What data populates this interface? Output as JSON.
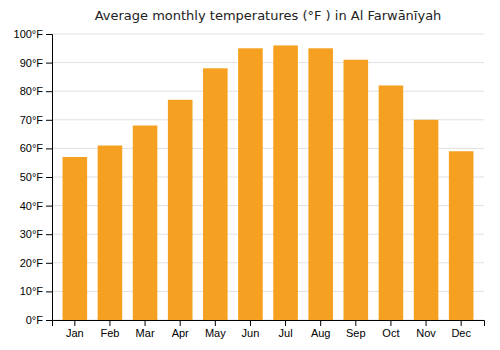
{
  "chart_data": {
    "type": "bar",
    "title": "Average monthly temperatures (°F ) in Al Farwānīyah",
    "categories": [
      "Jan",
      "Feb",
      "Mar",
      "Apr",
      "May",
      "Jun",
      "Jul",
      "Aug",
      "Sep",
      "Oct",
      "Nov",
      "Dec"
    ],
    "values": [
      57,
      61,
      68,
      77,
      88,
      95,
      96,
      95,
      91,
      82,
      70,
      59
    ],
    "color": "#F5A020",
    "ylim": [
      0,
      100
    ],
    "yticks": [
      {
        "value": 0,
        "label": "0°F"
      },
      {
        "value": 10,
        "label": "10°F"
      },
      {
        "value": 20,
        "label": "20°F"
      },
      {
        "value": 30,
        "label": "30°F"
      },
      {
        "value": 40,
        "label": "40°F"
      },
      {
        "value": 50,
        "label": "50°F"
      },
      {
        "value": 60,
        "label": "60°F"
      },
      {
        "value": 70,
        "label": "70°F"
      },
      {
        "value": 80,
        "label": "80°F"
      },
      {
        "value": 90,
        "label": "90°F"
      },
      {
        "value": 100,
        "label": "100°F"
      }
    ],
    "grid": true
  }
}
